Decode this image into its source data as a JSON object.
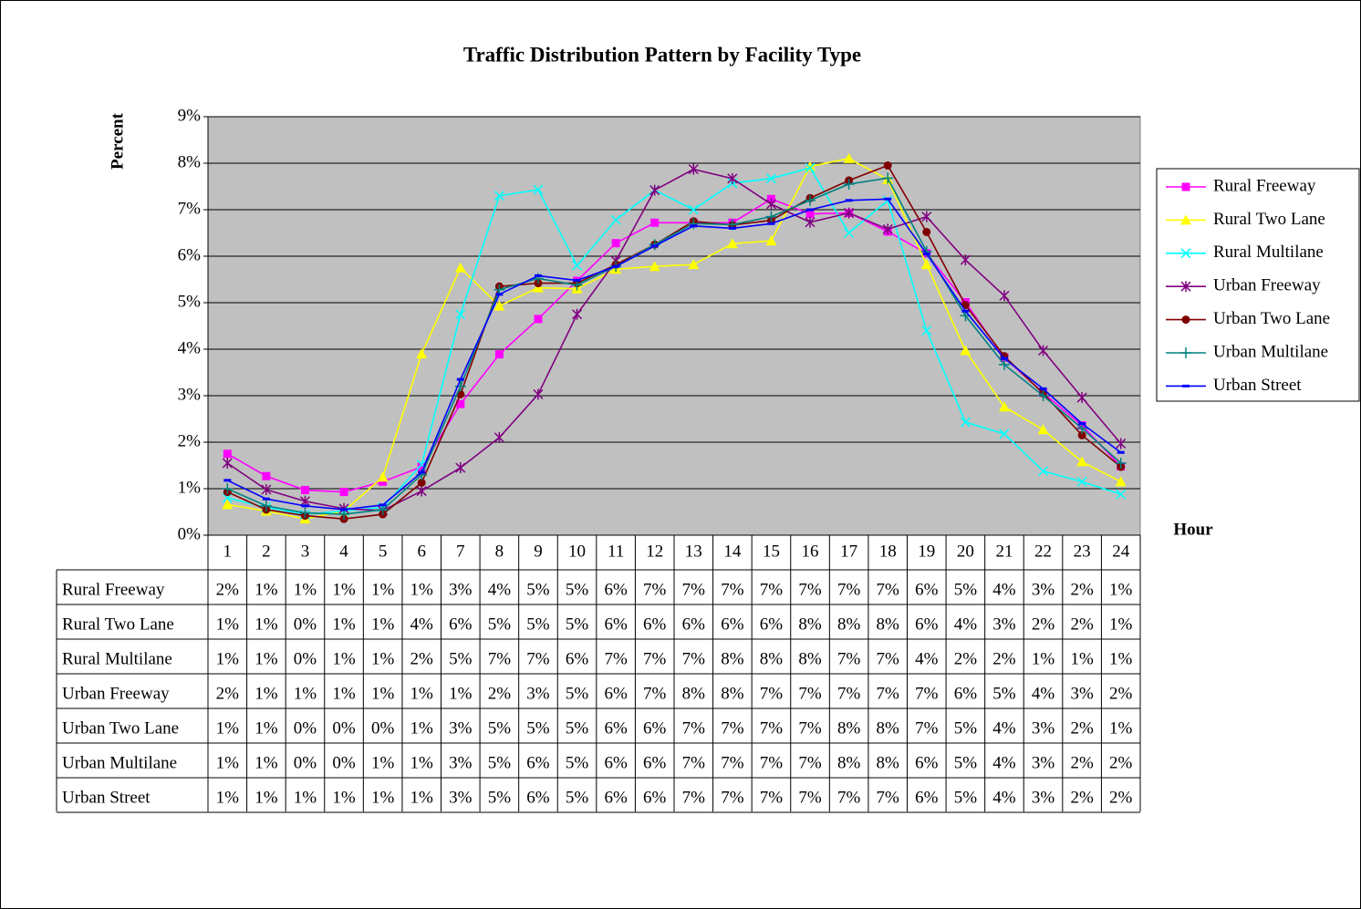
{
  "chart_data": {
    "type": "line",
    "title": "Traffic Distribution Pattern by Facility Type",
    "y_label": "Percent",
    "x_label": "Hour",
    "categories": [
      "1",
      "2",
      "3",
      "4",
      "5",
      "6",
      "7",
      "8",
      "9",
      "10",
      "11",
      "12",
      "13",
      "14",
      "15",
      "16",
      "17",
      "18",
      "19",
      "20",
      "21",
      "22",
      "23",
      "24"
    ],
    "ylim": [
      0,
      9
    ],
    "yticks": [
      {
        "value": 0,
        "label": "0%"
      },
      {
        "value": 1,
        "label": "1%"
      },
      {
        "value": 2,
        "label": "2%"
      },
      {
        "value": 3,
        "label": "3%"
      },
      {
        "value": 4,
        "label": "4%"
      },
      {
        "value": 5,
        "label": "5%"
      },
      {
        "value": 6,
        "label": "6%"
      },
      {
        "value": 7,
        "label": "7%"
      },
      {
        "value": 8,
        "label": "8%"
      },
      {
        "value": 9,
        "label": "9%"
      }
    ],
    "grid": true,
    "legend": "right",
    "series": [
      {
        "name": "Rural Freeway",
        "color": "#ff00ff",
        "marker": "square",
        "values": [
          1.75,
          1.27,
          0.97,
          0.93,
          1.15,
          1.47,
          2.82,
          3.89,
          4.65,
          5.47,
          6.28,
          6.72,
          6.72,
          6.72,
          7.23,
          6.91,
          6.93,
          6.53,
          6.06,
          5.01,
          3.82,
          3.06,
          2.36,
          1.48
        ],
        "value_labels": [
          "2%",
          "1%",
          "1%",
          "1%",
          "1%",
          "1%",
          "3%",
          "4%",
          "5%",
          "5%",
          "6%",
          "7%",
          "7%",
          "7%",
          "7%",
          "7%",
          "7%",
          "7%",
          "6%",
          "5%",
          "4%",
          "3%",
          "2%",
          "1%"
        ]
      },
      {
        "name": "Rural Two Lane",
        "color": "#ffff00",
        "marker": "triangle",
        "values": [
          0.66,
          0.52,
          0.35,
          0.52,
          1.25,
          3.9,
          5.75,
          4.93,
          5.32,
          5.3,
          5.72,
          5.78,
          5.82,
          6.27,
          6.33,
          7.93,
          8.1,
          7.65,
          5.82,
          3.97,
          2.76,
          2.27,
          1.58,
          1.15
        ],
        "value_labels": [
          "1%",
          "1%",
          "0%",
          "1%",
          "1%",
          "4%",
          "6%",
          "5%",
          "5%",
          "5%",
          "6%",
          "6%",
          "6%",
          "6%",
          "6%",
          "8%",
          "8%",
          "8%",
          "6%",
          "4%",
          "3%",
          "2%",
          "2%",
          "1%"
        ]
      },
      {
        "name": "Rural Multilane",
        "color": "#00ffff",
        "marker": "x",
        "values": [
          0.8,
          0.6,
          0.45,
          0.52,
          0.6,
          1.52,
          4.75,
          7.3,
          7.43,
          5.8,
          6.78,
          7.42,
          7.0,
          7.57,
          7.67,
          7.9,
          6.5,
          7.2,
          4.4,
          2.43,
          2.18,
          1.38,
          1.15,
          0.88
        ],
        "value_labels": [
          "1%",
          "1%",
          "0%",
          "1%",
          "1%",
          "2%",
          "5%",
          "7%",
          "7%",
          "6%",
          "7%",
          "7%",
          "7%",
          "8%",
          "8%",
          "8%",
          "7%",
          "7%",
          "4%",
          "2%",
          "2%",
          "1%",
          "1%",
          "1%"
        ]
      },
      {
        "name": "Urban Freeway",
        "color": "#800080",
        "marker": "star",
        "values": [
          1.55,
          0.98,
          0.73,
          0.57,
          0.53,
          0.95,
          1.45,
          2.1,
          3.03,
          4.75,
          5.9,
          7.42,
          7.87,
          7.67,
          7.12,
          6.73,
          6.93,
          6.58,
          6.85,
          5.92,
          5.15,
          3.97,
          2.96,
          1.97
        ],
        "value_labels": [
          "2%",
          "1%",
          "1%",
          "1%",
          "1%",
          "1%",
          "1%",
          "2%",
          "3%",
          "5%",
          "6%",
          "7%",
          "8%",
          "8%",
          "7%",
          "7%",
          "7%",
          "7%",
          "7%",
          "6%",
          "5%",
          "4%",
          "3%",
          "2%"
        ]
      },
      {
        "name": "Urban Two Lane",
        "color": "#800000",
        "marker": "circle",
        "values": [
          0.93,
          0.55,
          0.42,
          0.35,
          0.45,
          1.13,
          3.03,
          5.35,
          5.42,
          5.42,
          5.82,
          6.25,
          6.75,
          6.67,
          6.77,
          7.25,
          7.63,
          7.95,
          6.52,
          4.95,
          3.85,
          3.05,
          2.15,
          1.47
        ],
        "value_labels": [
          "1%",
          "1%",
          "0%",
          "0%",
          "0%",
          "1%",
          "3%",
          "5%",
          "5%",
          "5%",
          "6%",
          "6%",
          "7%",
          "7%",
          "7%",
          "7%",
          "8%",
          "8%",
          "7%",
          "5%",
          "4%",
          "3%",
          "2%",
          "1%"
        ]
      },
      {
        "name": "Urban Multilane",
        "color": "#008080",
        "marker": "plus",
        "values": [
          1.0,
          0.63,
          0.48,
          0.45,
          0.55,
          1.3,
          3.2,
          5.28,
          5.52,
          5.38,
          5.78,
          6.25,
          6.7,
          6.68,
          6.85,
          7.2,
          7.55,
          7.68,
          6.1,
          4.72,
          3.67,
          3.0,
          2.3,
          1.55
        ],
        "value_labels": [
          "1%",
          "1%",
          "0%",
          "0%",
          "1%",
          "1%",
          "3%",
          "5%",
          "6%",
          "5%",
          "6%",
          "6%",
          "7%",
          "7%",
          "7%",
          "7%",
          "8%",
          "8%",
          "6%",
          "5%",
          "4%",
          "3%",
          "2%",
          "2%"
        ]
      },
      {
        "name": "Urban Street",
        "color": "#0000ff",
        "marker": "dash",
        "values": [
          1.18,
          0.78,
          0.63,
          0.55,
          0.65,
          1.35,
          3.35,
          5.18,
          5.58,
          5.48,
          5.78,
          6.22,
          6.65,
          6.6,
          6.7,
          7.0,
          7.2,
          7.23,
          6.05,
          4.82,
          3.8,
          3.15,
          2.4,
          1.78
        ],
        "value_labels": [
          "1%",
          "1%",
          "1%",
          "1%",
          "1%",
          "1%",
          "3%",
          "5%",
          "6%",
          "5%",
          "6%",
          "6%",
          "7%",
          "7%",
          "7%",
          "7%",
          "7%",
          "7%",
          "6%",
          "5%",
          "4%",
          "3%",
          "2%",
          "2%"
        ]
      }
    ]
  }
}
